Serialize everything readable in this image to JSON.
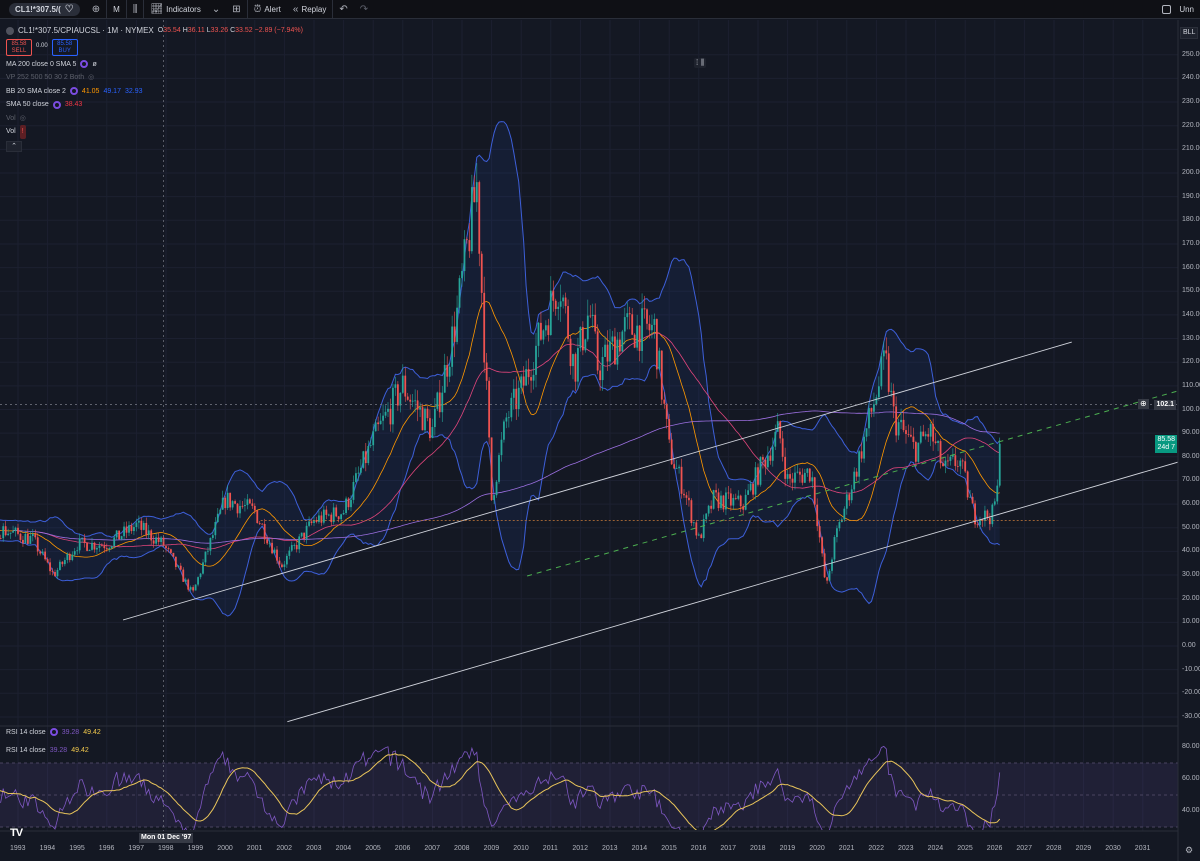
{
  "toolbar": {
    "symbol": "CL1!*307.5/(",
    "interval": "M",
    "indicators": "Indicators",
    "alert": "Alert",
    "replay": "Replay",
    "layout_name": "Unn"
  },
  "legend": {
    "title": "CL1!*307.5/CPIAUCSL · 1M · NYMEX",
    "o_label": "O",
    "o": "35.54",
    "h_label": "H",
    "h": "36.11",
    "l_label": "L",
    "l": "33.26",
    "c_label": "C",
    "c": "33.52",
    "change": "−2.89 (−7.94%)",
    "sell_price": "85.58",
    "sell_label": "SELL",
    "spread": "0.00",
    "buy_price": "85.58",
    "buy_label": "BUY",
    "indicators": [
      {
        "name": "MA 200 close 0 SMA 5",
        "value": "ø"
      },
      {
        "name": "VP 252 500 50 30 2 Both"
      },
      {
        "name": "BB 20 SMA close 2",
        "values": [
          "41.05",
          "49.17",
          "32.93"
        ]
      },
      {
        "name": "SMA 50 close",
        "value": "38.43"
      },
      {
        "name": "Vol"
      },
      {
        "name": "Vol",
        "error": "!"
      }
    ]
  },
  "rsi": {
    "legend1": {
      "name": "RSI 14 close",
      "rsi": "39.28",
      "ma": "49.42"
    },
    "legend2": {
      "name": "RSI 14 close",
      "rsi": "39.28",
      "ma": "49.42"
    }
  },
  "axis": {
    "currency": "BLL",
    "crosshair_price": "102.1",
    "crosshair_time": "Mon 01 Dec '97",
    "last_price": "85.58",
    "countdown": "24d 7"
  },
  "colors": {
    "up": "#26a69a",
    "down": "#ef5350",
    "bb": "#3d5fd9",
    "bb_basis": "#ff9800",
    "sma50": "#e0457b",
    "ma200": "#9b6fe0",
    "rsi": "#7e57c2",
    "rsi_ma": "#e8c45a",
    "trendline": "#d1d4dc",
    "dashed_trend": "#4caf50",
    "support": "#c77a3a"
  },
  "chart_data": [
    {
      "type": "candlestick",
      "title": "",
      "interval": "1M",
      "y_ticks": [
        250,
        240,
        230,
        220,
        210,
        200,
        190,
        180,
        170,
        160,
        150,
        140,
        130,
        120,
        110,
        100,
        90,
        80,
        70,
        60,
        50,
        40,
        30,
        20,
        10,
        0,
        -10,
        -20,
        -30
      ],
      "ylim": [
        -30,
        255
      ],
      "x_ticks": [
        "1993",
        "1994",
        "1995",
        "1996",
        "1997",
        "1998",
        "1999",
        "2000",
        "2001",
        "2002",
        "2003",
        "2004",
        "2005",
        "2006",
        "2007",
        "2008",
        "2009",
        "2010",
        "2011",
        "2012",
        "2013",
        "2014",
        "2015",
        "2016",
        "2017",
        "2018",
        "2019",
        "2020",
        "2021",
        "2022",
        "2023",
        "2024",
        "2025",
        "2026",
        "2027",
        "2028",
        "2029",
        "2030",
        "2031"
      ],
      "xlim": [
        1992.4,
        2032.2
      ],
      "grid": true,
      "close_path": [
        [
          1992.5,
          49
        ],
        [
          1993.5,
          45
        ],
        [
          1994.2,
          30
        ],
        [
          1995,
          43
        ],
        [
          1996,
          43
        ],
        [
          1997,
          51
        ],
        [
          1997.9,
          43
        ],
        [
          1998.9,
          22
        ],
        [
          2000,
          62
        ],
        [
          2001,
          57
        ],
        [
          2001.9,
          34
        ],
        [
          2003,
          53
        ],
        [
          2004,
          57
        ],
        [
          2005,
          87
        ],
        [
          2006,
          110
        ],
        [
          2007,
          91
        ],
        [
          2007.8,
          138
        ],
        [
          2008.5,
          195
        ],
        [
          2009,
          62
        ],
        [
          2009.5,
          96
        ],
        [
          2010,
          108
        ],
        [
          2011.3,
          155
        ],
        [
          2011.8,
          117
        ],
        [
          2012.3,
          142
        ],
        [
          2012.6,
          117
        ],
        [
          2013.5,
          134
        ],
        [
          2014.5,
          134
        ],
        [
          2015,
          83
        ],
        [
          2015.5,
          66
        ],
        [
          2016,
          45
        ],
        [
          2016.5,
          62
        ],
        [
          2017.5,
          60
        ],
        [
          2018.7,
          91
        ],
        [
          2019,
          70
        ],
        [
          2019.8,
          74
        ],
        [
          2020.3,
          24
        ],
        [
          2020.6,
          45
        ],
        [
          2021.3,
          74
        ],
        [
          2022.3,
          121
        ],
        [
          2022.6,
          96
        ],
        [
          2023.3,
          83
        ],
        [
          2023.8,
          91
        ],
        [
          2024.3,
          74
        ],
        [
          2024.8,
          79
        ],
        [
          2025.3,
          55
        ],
        [
          2025.9,
          55
        ],
        [
          2026.1,
          66
        ],
        [
          2026.2,
          85.58
        ]
      ],
      "last_close": 85.58,
      "overlays": [
        "BB 20 SMA close 2",
        "SMA 50 close",
        "MA 200 close 0 SMA 5"
      ],
      "trendlines": [
        {
          "style": "solid",
          "from": [
            1996.55,
            11
          ],
          "to": [
            2028.6,
            128.5
          ]
        },
        {
          "style": "solid",
          "from": [
            2002.1,
            -32
          ],
          "to": [
            2032.2,
            77.8
          ]
        },
        {
          "style": "dashed",
          "from": [
            2010.2,
            29.6
          ],
          "to": [
            2032.9,
            110.4
          ]
        }
      ],
      "horizontal_lines": [
        {
          "style": "dotted",
          "value": 53,
          "from": 2001.2,
          "to": 2028.1
        }
      ]
    },
    {
      "type": "line",
      "title": "RSI 14 close",
      "y_ticks": [
        80,
        60,
        40
      ],
      "band": [
        30,
        70
      ],
      "midline": 50,
      "series": [
        {
          "name": "RSI 14 close"
        },
        {
          "name": "RSI-based MA"
        }
      ]
    }
  ]
}
